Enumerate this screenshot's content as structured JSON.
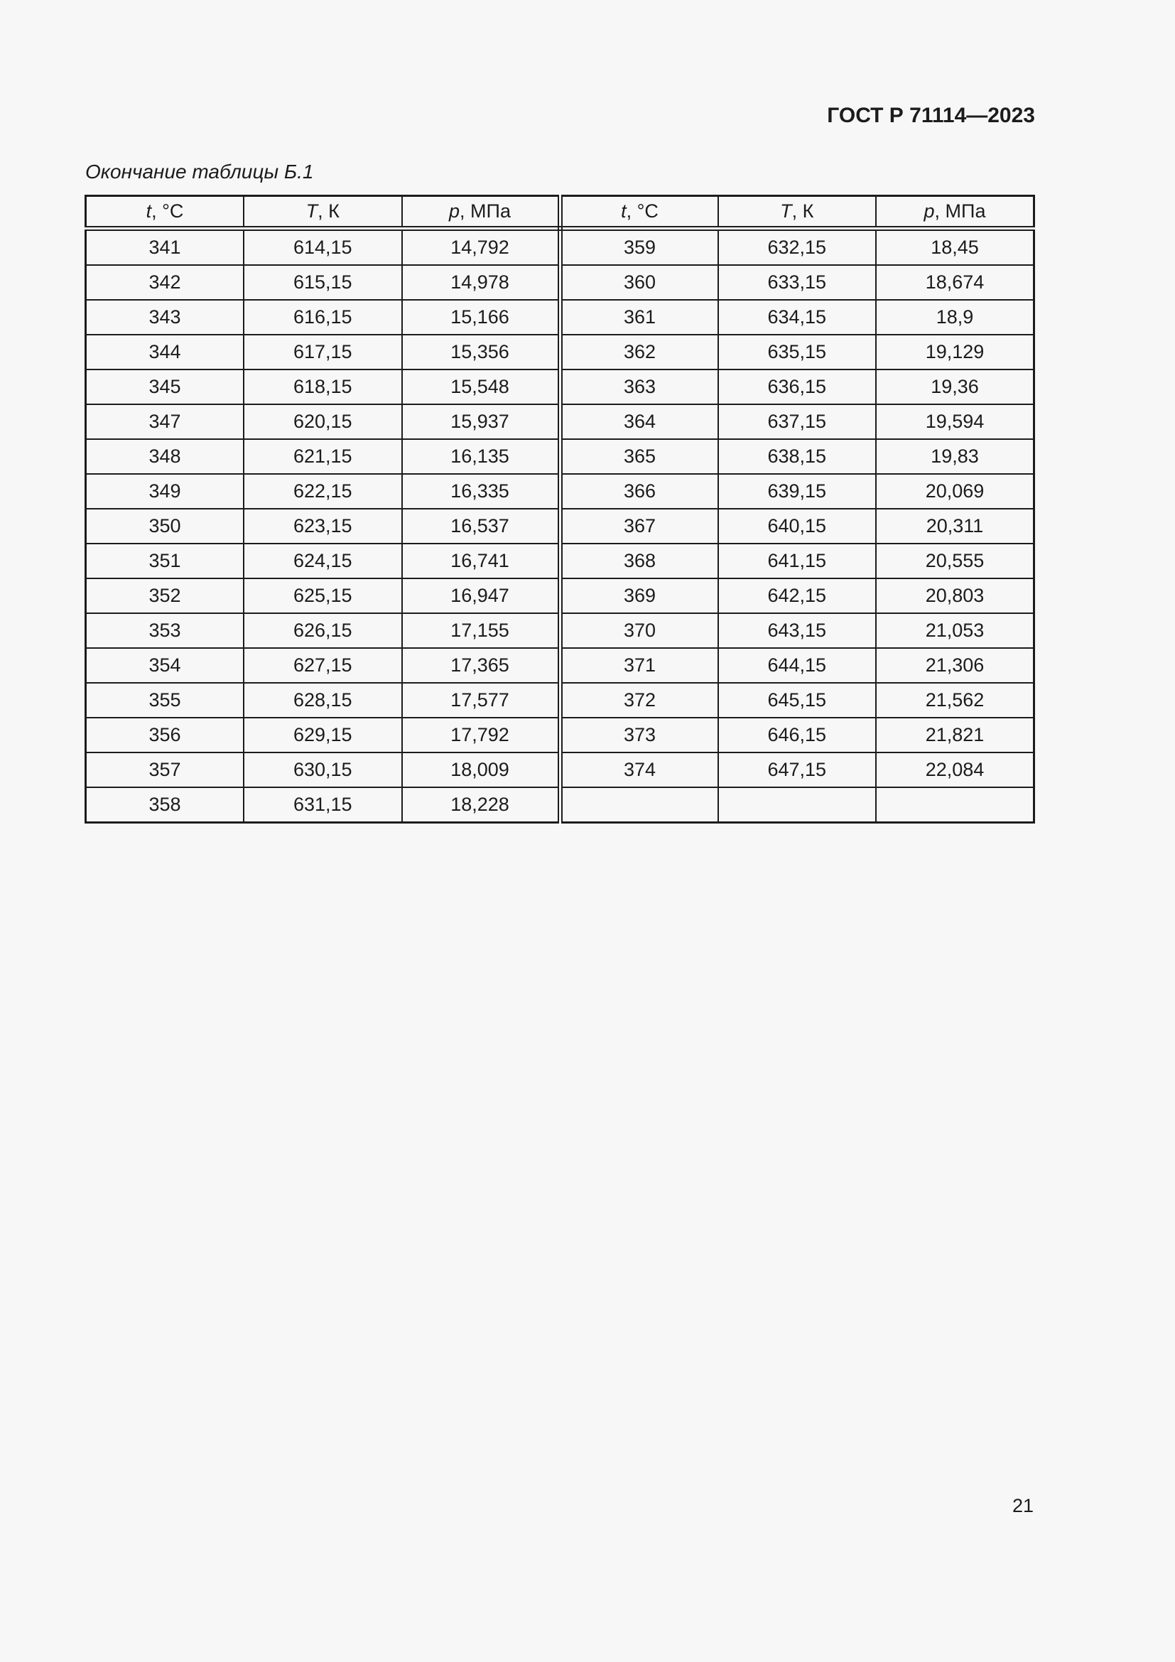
{
  "page": {
    "header": "ГОСТ Р 71114—2023",
    "caption": "Окончание таблицы Б.1",
    "page_number": "21"
  },
  "table": {
    "headers": [
      {
        "symbol": "t",
        "rest": ", °C"
      },
      {
        "symbol": "T",
        "rest": ", К"
      },
      {
        "symbol": "p",
        "rest": ", МПа"
      },
      {
        "symbol": "t",
        "rest": ", °C"
      },
      {
        "symbol": "T",
        "rest": ", К"
      },
      {
        "symbol": "p",
        "rest": ", МПа"
      }
    ],
    "rows": [
      [
        "341",
        "614,15",
        "14,792",
        "359",
        "632,15",
        "18,45"
      ],
      [
        "342",
        "615,15",
        "14,978",
        "360",
        "633,15",
        "18,674"
      ],
      [
        "343",
        "616,15",
        "15,166",
        "361",
        "634,15",
        "18,9"
      ],
      [
        "344",
        "617,15",
        "15,356",
        "362",
        "635,15",
        "19,129"
      ],
      [
        "345",
        "618,15",
        "15,548",
        "363",
        "636,15",
        "19,36"
      ],
      [
        "347",
        "620,15",
        "15,937",
        "364",
        "637,15",
        "19,594"
      ],
      [
        "348",
        "621,15",
        "16,135",
        "365",
        "638,15",
        "19,83"
      ],
      [
        "349",
        "622,15",
        "16,335",
        "366",
        "639,15",
        "20,069"
      ],
      [
        "350",
        "623,15",
        "16,537",
        "367",
        "640,15",
        "20,311"
      ],
      [
        "351",
        "624,15",
        "16,741",
        "368",
        "641,15",
        "20,555"
      ],
      [
        "352",
        "625,15",
        "16,947",
        "369",
        "642,15",
        "20,803"
      ],
      [
        "353",
        "626,15",
        "17,155",
        "370",
        "643,15",
        "21,053"
      ],
      [
        "354",
        "627,15",
        "17,365",
        "371",
        "644,15",
        "21,306"
      ],
      [
        "355",
        "628,15",
        "17,577",
        "372",
        "645,15",
        "21,562"
      ],
      [
        "356",
        "629,15",
        "17,792",
        "373",
        "646,15",
        "21,821"
      ],
      [
        "357",
        "630,15",
        "18,009",
        "374",
        "647,15",
        "22,084"
      ],
      [
        "358",
        "631,15",
        "18,228",
        "",
        "",
        ""
      ]
    ]
  },
  "colors": {
    "page_bg": "#f7f7f7",
    "ink": "#1c1c1c"
  }
}
